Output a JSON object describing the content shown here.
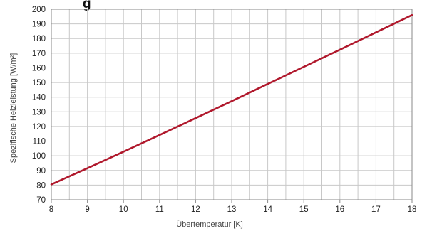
{
  "chart_data": {
    "type": "line",
    "title_fragment": "g",
    "xlabel": "Übertemperatur [K]",
    "ylabel": "Spezifische Heizleistung [W/m²]",
    "xlim": [
      8,
      18
    ],
    "ylim": [
      70,
      200
    ],
    "x_ticks": [
      8,
      9,
      10,
      11,
      12,
      13,
      14,
      15,
      16,
      17,
      18
    ],
    "y_ticks": [
      70,
      80,
      90,
      100,
      110,
      120,
      130,
      140,
      150,
      160,
      170,
      180,
      190,
      200
    ],
    "x_minor_step": 0.5,
    "grid": true,
    "series": [
      {
        "color": "#b0182c",
        "x": [
          8,
          9,
          10,
          11,
          12,
          13,
          14,
          15,
          16,
          17,
          18
        ],
        "y": [
          80.5,
          91.5,
          102.8,
          114.2,
          125.7,
          137.3,
          149.0,
          160.7,
          172.4,
          184.2,
          196.0
        ]
      }
    ],
    "colors": {
      "grid": "#c8c8c8",
      "axis": "#888888"
    }
  }
}
